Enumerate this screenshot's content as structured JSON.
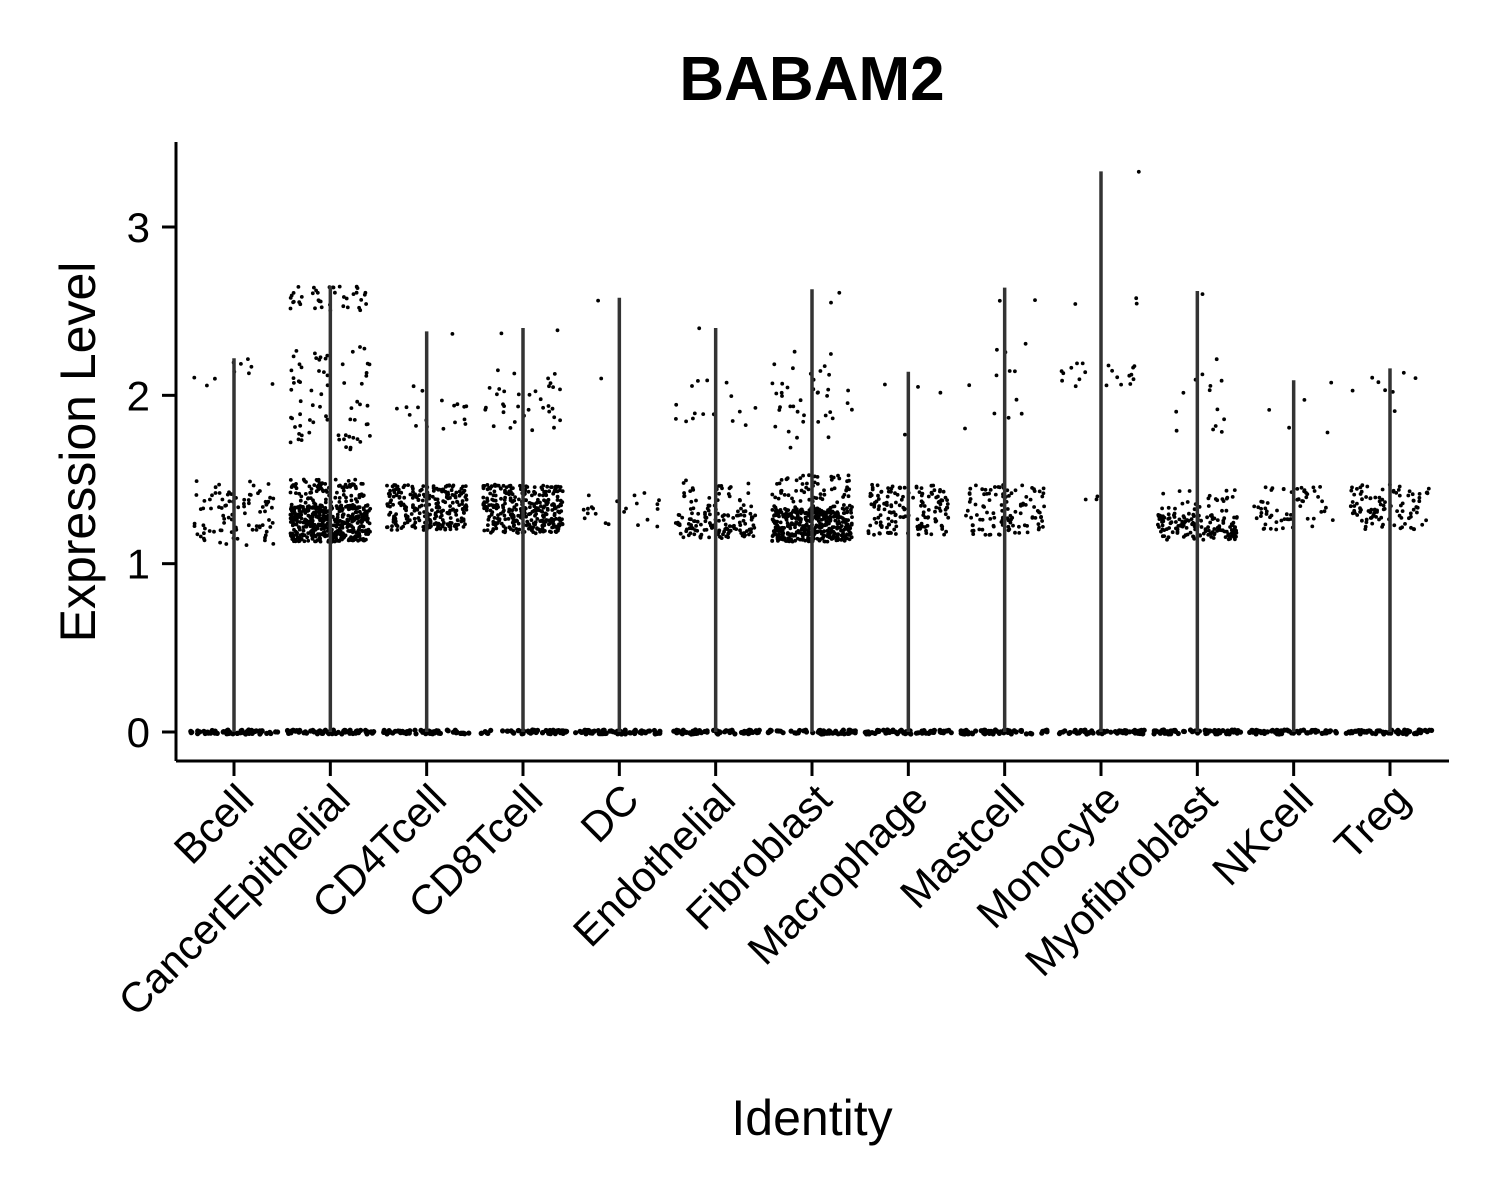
{
  "chart_data": {
    "type": "violin",
    "title": "BABAM2",
    "xlabel": "Identity",
    "ylabel": "Expression Level",
    "ylim": [
      -0.15,
      3.5
    ],
    "yticks": [
      0,
      1,
      2,
      3
    ],
    "grid": false,
    "legend": "none",
    "colors": {
      "points": "#000000",
      "violin": "#333333",
      "axis": "#000000"
    },
    "categories": [
      "Bcell",
      "CancerEpithelial",
      "CD4Tcell",
      "CD8Tcell",
      "DC",
      "Endothelial",
      "Fibroblast",
      "Macrophage",
      "Mastcell",
      "Monocyte",
      "Myofibroblast",
      "NKcell",
      "Treg"
    ],
    "max_values": [
      2.22,
      2.65,
      2.38,
      2.4,
      2.58,
      2.4,
      2.63,
      2.14,
      2.64,
      3.33,
      2.62,
      2.09,
      2.16
    ],
    "point_clusters": [
      {
        "category": "Bcell",
        "clusters": [
          {
            "low": 1.1,
            "high": 1.5,
            "count": 90
          },
          {
            "low": 2.05,
            "high": 2.22,
            "count": 10
          }
        ]
      },
      {
        "category": "CancerEpithelial",
        "clusters": [
          {
            "low": 1.13,
            "high": 1.35,
            "count": 450
          },
          {
            "low": 1.35,
            "high": 1.5,
            "count": 90
          },
          {
            "low": 1.65,
            "high": 2.3,
            "count": 70
          },
          {
            "low": 2.5,
            "high": 2.65,
            "count": 40
          }
        ]
      },
      {
        "category": "CD4Tcell",
        "clusters": [
          {
            "low": 1.2,
            "high": 1.47,
            "count": 260
          },
          {
            "low": 1.78,
            "high": 2.08,
            "count": 18
          },
          {
            "low": 2.36,
            "high": 2.38,
            "count": 1
          }
        ]
      },
      {
        "category": "CD8Tcell",
        "clusters": [
          {
            "low": 1.18,
            "high": 1.47,
            "count": 330
          },
          {
            "low": 1.78,
            "high": 2.15,
            "count": 35
          },
          {
            "low": 2.36,
            "high": 2.4,
            "count": 2
          }
        ]
      },
      {
        "category": "DC",
        "clusters": [
          {
            "low": 1.2,
            "high": 1.42,
            "count": 22
          },
          {
            "low": 2.1,
            "high": 2.13,
            "count": 1
          },
          {
            "low": 2.56,
            "high": 2.58,
            "count": 1
          }
        ]
      },
      {
        "category": "Endothelial",
        "clusters": [
          {
            "low": 1.15,
            "high": 1.3,
            "count": 110
          },
          {
            "low": 1.3,
            "high": 1.5,
            "count": 40
          },
          {
            "low": 1.82,
            "high": 2.22,
            "count": 16
          },
          {
            "low": 2.38,
            "high": 2.4,
            "count": 1
          }
        ]
      },
      {
        "category": "Fibroblast",
        "clusters": [
          {
            "low": 1.13,
            "high": 1.33,
            "count": 380
          },
          {
            "low": 1.33,
            "high": 1.53,
            "count": 70
          },
          {
            "low": 1.68,
            "high": 2.27,
            "count": 40
          },
          {
            "low": 2.53,
            "high": 2.63,
            "count": 2
          }
        ]
      },
      {
        "category": "Macrophage",
        "clusters": [
          {
            "low": 1.17,
            "high": 1.47,
            "count": 150
          },
          {
            "low": 1.74,
            "high": 2.14,
            "count": 4
          }
        ]
      },
      {
        "category": "Mastcell",
        "clusters": [
          {
            "low": 1.17,
            "high": 1.47,
            "count": 110
          },
          {
            "low": 1.74,
            "high": 2.32,
            "count": 12
          },
          {
            "low": 2.54,
            "high": 2.64,
            "count": 2
          }
        ]
      },
      {
        "category": "Monocyte",
        "clusters": [
          {
            "low": 1.38,
            "high": 1.45,
            "count": 3
          },
          {
            "low": 2.05,
            "high": 2.2,
            "count": 20
          },
          {
            "low": 2.54,
            "high": 2.6,
            "count": 3
          },
          {
            "low": 3.32,
            "high": 3.33,
            "count": 1
          }
        ]
      },
      {
        "category": "Myofibroblast",
        "clusters": [
          {
            "low": 1.14,
            "high": 1.3,
            "count": 140
          },
          {
            "low": 1.3,
            "high": 1.45,
            "count": 25
          },
          {
            "low": 1.74,
            "high": 2.22,
            "count": 14
          },
          {
            "low": 2.6,
            "high": 2.62,
            "count": 1
          }
        ]
      },
      {
        "category": "NKcell",
        "clusters": [
          {
            "low": 1.2,
            "high": 1.47,
            "count": 60
          },
          {
            "low": 1.76,
            "high": 2.09,
            "count": 5
          }
        ]
      },
      {
        "category": "Treg",
        "clusters": [
          {
            "low": 1.2,
            "high": 1.47,
            "count": 100
          },
          {
            "low": 1.9,
            "high": 2.16,
            "count": 8
          }
        ]
      }
    ],
    "zero_band_count": 60
  }
}
